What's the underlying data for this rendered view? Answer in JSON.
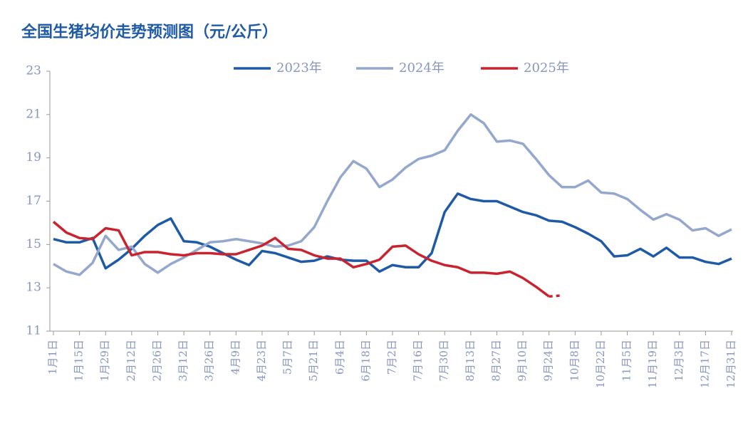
{
  "chart_data": {
    "type": "line",
    "title": "全国生猪均价走势预测图（元/公斤）",
    "categories": [
      "1月1日",
      null,
      "1月15日",
      null,
      "1月29日",
      null,
      "2月12日",
      null,
      "2月26日",
      null,
      "3月12日",
      null,
      "3月26日",
      null,
      "4月9日",
      null,
      "4月23日",
      null,
      "5月7日",
      null,
      "5月21日",
      null,
      "6月4日",
      null,
      "6月18日",
      null,
      "7月2日",
      null,
      "7月16日",
      null,
      "7月30日",
      null,
      "8月13日",
      null,
      "8月27日",
      null,
      "9月10日",
      null,
      "9月24日",
      null,
      "10月8日",
      null,
      "10月22日",
      null,
      "11月5日",
      null,
      "11月19日",
      null,
      "12月3日",
      null,
      "12月17日",
      null,
      "12月31日"
    ],
    "series": [
      {
        "name": "2023年",
        "color": "#1f5aa6",
        "values": [
          15.25,
          15.1,
          15.1,
          15.3,
          13.9,
          14.3,
          14.8,
          15.4,
          15.9,
          16.2,
          15.15,
          15.1,
          14.9,
          14.6,
          14.3,
          14.05,
          14.7,
          14.6,
          14.4,
          14.2,
          14.25,
          14.45,
          14.3,
          14.25,
          14.25,
          13.75,
          14.05,
          13.95,
          13.95,
          14.6,
          16.5,
          17.35,
          17.1,
          17.0,
          17.0,
          16.75,
          16.5,
          16.35,
          16.1,
          16.05,
          15.8,
          15.5,
          15.15,
          14.45,
          14.5,
          14.8,
          14.45,
          14.85,
          14.4,
          14.4,
          14.2,
          14.1,
          14.35
        ]
      },
      {
        "name": "2024年",
        "color": "#94a7cc",
        "values": [
          14.1,
          13.75,
          13.6,
          14.15,
          15.4,
          14.75,
          14.9,
          14.1,
          13.7,
          14.1,
          14.4,
          14.75,
          15.1,
          15.15,
          15.25,
          15.15,
          15.05,
          14.9,
          14.95,
          15.15,
          15.8,
          17.0,
          18.1,
          18.85,
          18.5,
          17.65,
          18.0,
          18.55,
          18.95,
          19.1,
          19.35,
          20.25,
          21.0,
          20.6,
          19.75,
          19.8,
          19.65,
          18.95,
          18.2,
          17.65,
          17.65,
          17.95,
          17.4,
          17.35,
          17.1,
          16.6,
          16.15,
          16.4,
          16.15,
          15.65,
          15.75,
          15.4,
          15.7
        ]
      },
      {
        "name": "2025年",
        "color": "#c8232e",
        "dash_from": 38,
        "values": [
          16.05,
          15.55,
          15.3,
          15.25,
          15.75,
          15.65,
          14.5,
          14.65,
          14.65,
          14.55,
          14.5,
          14.6,
          14.6,
          14.55,
          14.55,
          14.75,
          14.95,
          15.3,
          14.8,
          14.75,
          14.5,
          14.35,
          14.35,
          13.95,
          14.1,
          14.3,
          14.9,
          14.95,
          14.55,
          14.25,
          14.05,
          13.95,
          13.7,
          13.7,
          13.65,
          13.75,
          13.45,
          13.05,
          12.6,
          12.65,
          null,
          null,
          null,
          null,
          null,
          null,
          null,
          null,
          null,
          null,
          null,
          null,
          null
        ]
      }
    ],
    "ylim": [
      11,
      23
    ],
    "yticks": [
      11,
      13,
      15,
      17,
      19,
      21,
      23
    ],
    "legend": "top"
  }
}
